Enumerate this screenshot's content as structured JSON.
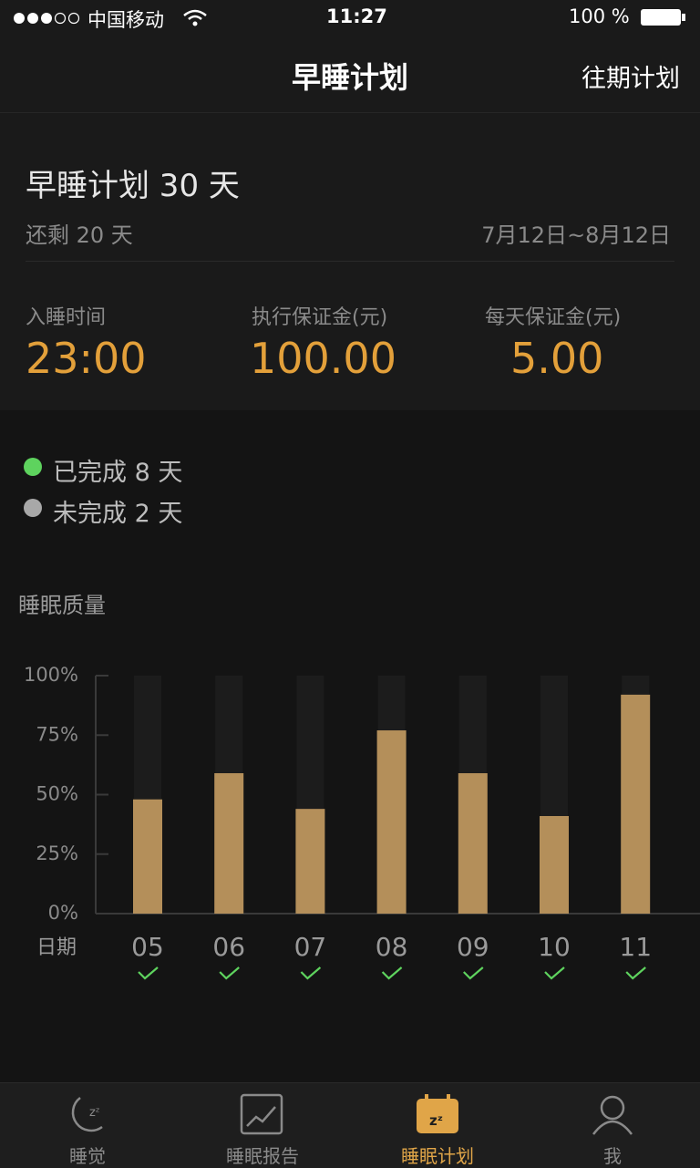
{
  "status_bar": {
    "carrier": "中国移动",
    "time": "11:27",
    "battery": "100 %"
  },
  "nav": {
    "title": "早睡计划",
    "history": "往期计划"
  },
  "plan": {
    "title": "早睡计划 30 天",
    "remaining": "还剩 20 天",
    "dates": "7月12日~8月12日"
  },
  "stats": [
    {
      "label": "入睡时间",
      "value": "23:00"
    },
    {
      "label": "执行保证金(元)",
      "value": "100.00"
    },
    {
      "label": "每天保证金(元)",
      "value": "5.00"
    }
  ],
  "progress": {
    "done": "已完成 8 天",
    "undone": "未完成 2 天"
  },
  "chart_data": {
    "type": "bar",
    "title": "睡眠质量",
    "x_label": "日期",
    "categories": [
      "05",
      "06",
      "07",
      "08",
      "09",
      "10",
      "11"
    ],
    "values": [
      48,
      59,
      44,
      77,
      59,
      41,
      92
    ],
    "color": "#b48f5a",
    "ylim": [
      0,
      100
    ],
    "yticks": [
      {
        "value": 0,
        "label": "0%"
      },
      {
        "value": 25,
        "label": "25%"
      },
      {
        "value": 50,
        "label": "50%"
      },
      {
        "value": 75,
        "label": "75%"
      },
      {
        "value": 100,
        "label": "100%"
      }
    ]
  },
  "tabs": [
    "睡觉",
    "睡眠报告",
    "睡眠计划",
    "我"
  ]
}
